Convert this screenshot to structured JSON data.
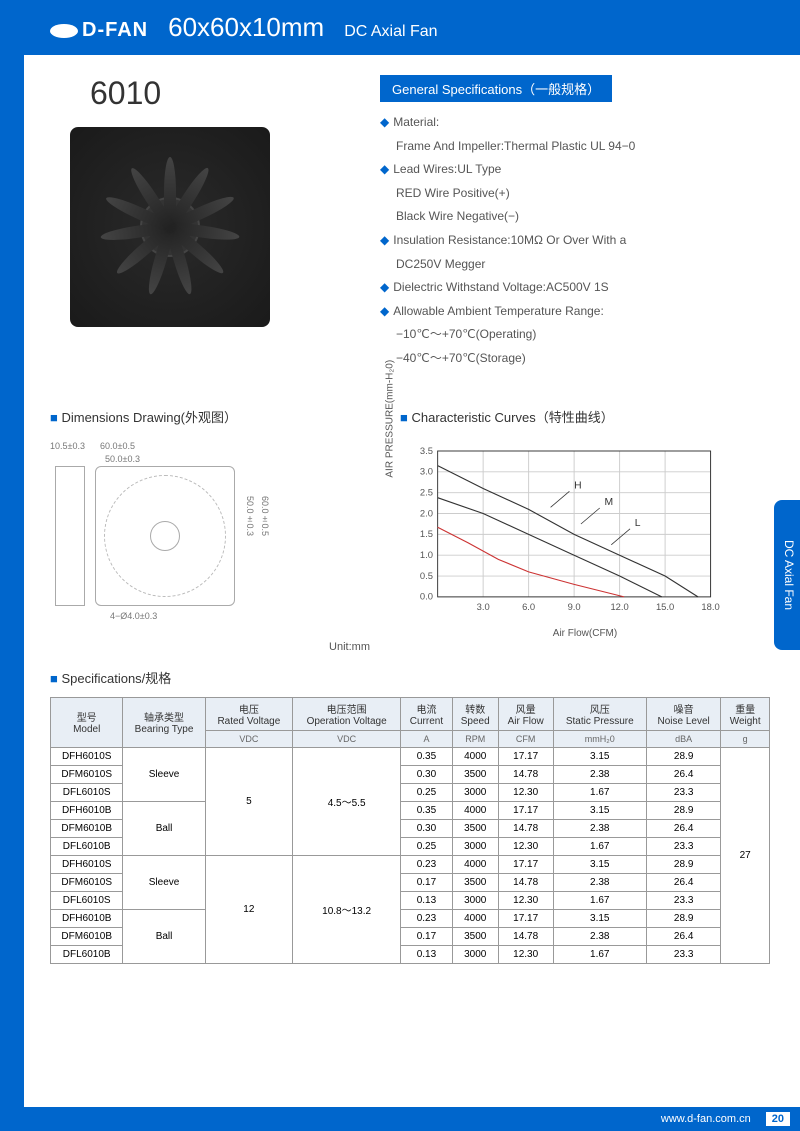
{
  "header": {
    "brand": "D-FAN",
    "title": "60x60x10mm",
    "subtitle": "DC Axial Fan"
  },
  "model": "6010",
  "gen_spec": {
    "title": "General Specifications（一般规格）",
    "items": [
      {
        "b": true,
        "t": "Material:"
      },
      {
        "b": false,
        "t": "Frame And Impeller:Thermal Plastic UL 94−0"
      },
      {
        "b": true,
        "t": "Lead Wires:UL Type"
      },
      {
        "b": false,
        "t": "RED Wire Positive(+)"
      },
      {
        "b": false,
        "t": "Black Wire Negative(−)"
      },
      {
        "b": true,
        "t": "Insulation Resistance:10MΩ Or Over With a"
      },
      {
        "b": false,
        "t": "DC250V Megger"
      },
      {
        "b": true,
        "t": "Dielectric Withstand Voltage:AC500V 1S"
      },
      {
        "b": true,
        "t": "Allowable Ambient Temperature Range:"
      },
      {
        "b": false,
        "t": "−10℃～+70℃(Operating)"
      },
      {
        "b": false,
        "t": "−40℃～+70℃(Storage)"
      }
    ]
  },
  "dim": {
    "title": "Dimensions Drawing(外观图）",
    "labels": {
      "w": "60.0±0.5",
      "w2": "50.0±0.3",
      "h": "60.0±0.5",
      "h2": "50.0±0.3",
      "d": "10.5±0.3",
      "hole": "4−Ø4.0±0.3",
      "unit": "Unit:mm"
    }
  },
  "curves": {
    "title": "Characteristic Curves（特性曲线）",
    "ylabel": "AIR PRESSURE(mm-H₂0)",
    "xlabel": "Air Flow(CFM)",
    "xlim": [
      0,
      18
    ],
    "ylim": [
      0,
      3.5
    ],
    "xticks": [
      3.0,
      6.0,
      9.0,
      12.0,
      15.0,
      18.0
    ],
    "yticks": [
      0.0,
      0.5,
      1.0,
      1.5,
      2.0,
      2.5,
      3.0,
      3.5
    ],
    "grid_color": "#cccccc",
    "axis_color": "#333333",
    "series": [
      {
        "label": "H",
        "color": "#333333",
        "pts": [
          [
            0,
            3.15
          ],
          [
            3,
            2.6
          ],
          [
            6,
            2.1
          ],
          [
            9,
            1.5
          ],
          [
            12,
            1.0
          ],
          [
            15,
            0.5
          ],
          [
            17.17,
            0
          ]
        ]
      },
      {
        "label": "M",
        "color": "#333333",
        "pts": [
          [
            0,
            2.38
          ],
          [
            3,
            2.0
          ],
          [
            6,
            1.5
          ],
          [
            9,
            1.0
          ],
          [
            12,
            0.5
          ],
          [
            14.78,
            0
          ]
        ]
      },
      {
        "label": "L",
        "color": "#cc3333",
        "pts": [
          [
            0,
            1.67
          ],
          [
            2,
            1.3
          ],
          [
            4,
            0.9
          ],
          [
            6,
            0.6
          ],
          [
            9,
            0.3
          ],
          [
            12.3,
            0
          ]
        ]
      }
    ],
    "label_pos": {
      "H": [
        9,
        2.6
      ],
      "M": [
        11,
        2.2
      ],
      "L": [
        13,
        1.7
      ]
    }
  },
  "spec_table": {
    "title": "Specifications/规格",
    "columns": [
      {
        "cn": "型号",
        "en": "Model",
        "unit": ""
      },
      {
        "cn": "轴承类型",
        "en": "Bearing Type",
        "unit": ""
      },
      {
        "cn": "电压",
        "en": "Rated Voltage",
        "unit": "VDC"
      },
      {
        "cn": "电压范围",
        "en": "Operation Voltage",
        "unit": "VDC"
      },
      {
        "cn": "电流",
        "en": "Current",
        "unit": "A"
      },
      {
        "cn": "转数",
        "en": "Speed",
        "unit": "RPM"
      },
      {
        "cn": "风量",
        "en": "Air Flow",
        "unit": "CFM"
      },
      {
        "cn": "风压",
        "en": "Static Pressure",
        "unit": "mmH₂0"
      },
      {
        "cn": "噪音",
        "en": "Noise Level",
        "unit": "dBA"
      },
      {
        "cn": "重量",
        "en": "Weight",
        "unit": "g"
      }
    ],
    "bearing_groups": [
      {
        "type": "Sleeve",
        "span": 3
      },
      {
        "type": "Ball",
        "span": 3
      },
      {
        "type": "Sleeve",
        "span": 3
      },
      {
        "type": "Ball",
        "span": 3
      }
    ],
    "voltage_groups": [
      {
        "v": "5",
        "ov": "4.5～5.5",
        "span": 6
      },
      {
        "v": "12",
        "ov": "10.8～13.2",
        "span": 6
      }
    ],
    "weight": "27",
    "rows": [
      [
        "DFH6010S",
        "0.35",
        "4000",
        "17.17",
        "3.15",
        "28.9"
      ],
      [
        "DFM6010S",
        "0.30",
        "3500",
        "14.78",
        "2.38",
        "26.4"
      ],
      [
        "DFL6010S",
        "0.25",
        "3000",
        "12.30",
        "1.67",
        "23.3"
      ],
      [
        "DFH6010B",
        "0.35",
        "4000",
        "17.17",
        "3.15",
        "28.9"
      ],
      [
        "DFM6010B",
        "0.30",
        "3500",
        "14.78",
        "2.38",
        "26.4"
      ],
      [
        "DFL6010B",
        "0.25",
        "3000",
        "12.30",
        "1.67",
        "23.3"
      ],
      [
        "DFH6010S",
        "0.23",
        "4000",
        "17.17",
        "3.15",
        "28.9"
      ],
      [
        "DFM6010S",
        "0.17",
        "3500",
        "14.78",
        "2.38",
        "26.4"
      ],
      [
        "DFL6010S",
        "0.13",
        "3000",
        "12.30",
        "1.67",
        "23.3"
      ],
      [
        "DFH6010B",
        "0.23",
        "4000",
        "17.17",
        "3.15",
        "28.9"
      ],
      [
        "DFM6010B",
        "0.17",
        "3500",
        "14.78",
        "2.38",
        "26.4"
      ],
      [
        "DFL6010B",
        "0.13",
        "3000",
        "12.30",
        "1.67",
        "23.3"
      ]
    ]
  },
  "side_tab": "DC Axial Fan",
  "footer": {
    "url": "www.d-fan.com.cn",
    "page": "20"
  }
}
